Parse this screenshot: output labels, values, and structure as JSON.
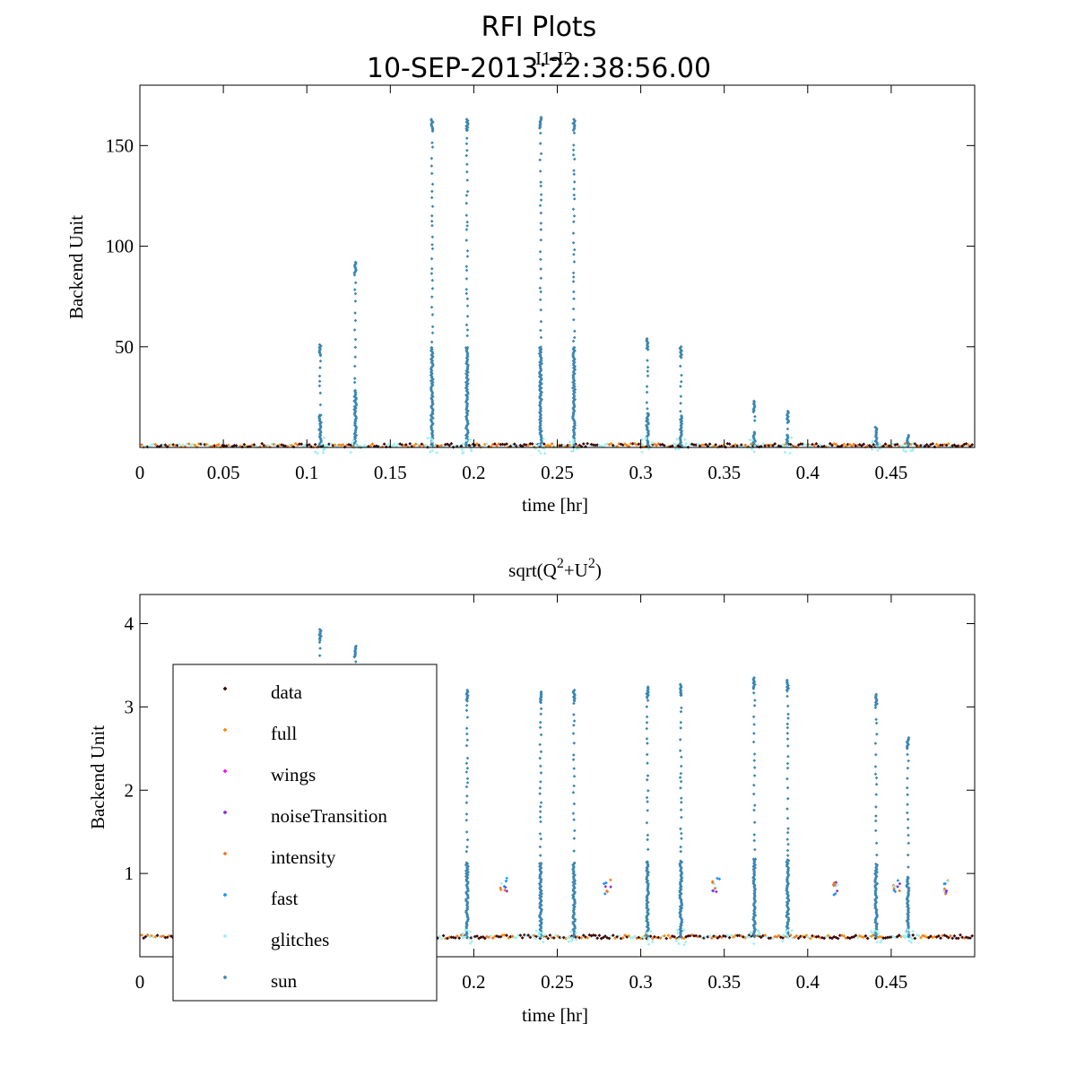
{
  "figure": {
    "title": "RFI Plots",
    "subtitle": "10-SEP-2013:22:38:56.00"
  },
  "colors": {
    "data": "#3a0a0a",
    "full": "#ff8c00",
    "wings": "#ff00ff",
    "noiseTransition": "#8a2be2",
    "intensity": "#f07820",
    "fast": "#1e90ff",
    "glitches": "#a0f0f0",
    "sun": "#3a86b0"
  },
  "legend": {
    "entries": [
      "data",
      "full",
      "wings",
      "noiseTransition",
      "intensity",
      "fast",
      "glitches",
      "sun"
    ]
  },
  "chart_data": [
    {
      "type": "scatter",
      "title": "I1-I2",
      "xlabel": "time [hr]",
      "ylabel": "Backend Unit",
      "xlim": [
        0,
        0.5
      ],
      "ylim": [
        0,
        180
      ],
      "xticks": [
        0,
        0.05,
        0.1,
        0.15,
        0.2,
        0.25,
        0.3,
        0.35,
        0.4,
        0.45
      ],
      "xtick_labels": [
        "0",
        "0.05",
        "0.1",
        "0.15",
        "0.2",
        "0.25",
        "0.3",
        "0.35",
        "0.4",
        "0.45"
      ],
      "yticks": [
        50,
        100,
        150
      ],
      "ytick_labels": [
        "50",
        "100",
        "150"
      ],
      "baseline": 1.0,
      "sun_spikes": [
        {
          "x": 0.108,
          "peak": 51
        },
        {
          "x": 0.129,
          "peak": 92
        },
        {
          "x": 0.175,
          "peak": 163
        },
        {
          "x": 0.196,
          "peak": 163
        },
        {
          "x": 0.24,
          "peak": 164
        },
        {
          "x": 0.26,
          "peak": 163
        },
        {
          "x": 0.304,
          "peak": 54
        },
        {
          "x": 0.324,
          "peak": 50
        },
        {
          "x": 0.368,
          "peak": 23
        },
        {
          "x": 0.388,
          "peak": 18
        },
        {
          "x": 0.441,
          "peak": 10
        },
        {
          "x": 0.46,
          "peak": 6
        }
      ]
    },
    {
      "type": "scatter",
      "title": "sqrt(Q^2+U^2)",
      "title_parts": [
        "sqrt(Q",
        "2",
        "+U",
        "2",
        ")"
      ],
      "xlabel": "time [hr]",
      "ylabel": "Backend Unit",
      "xlim": [
        0,
        0.5
      ],
      "ylim": [
        0,
        4.35
      ],
      "xticks": [
        0,
        0.2,
        0.25,
        0.3,
        0.35,
        0.4,
        0.45
      ],
      "xtick_labels": [
        "0",
        "0.2",
        "0.25",
        "0.3",
        "0.35",
        "0.4",
        "0.45"
      ],
      "yticks": [
        1,
        2,
        3,
        4
      ],
      "ytick_labels": [
        "1",
        "2",
        "3",
        "4"
      ],
      "baseline": 0.24,
      "sun_spikes": [
        {
          "x": 0.108,
          "peak": 3.93
        },
        {
          "x": 0.129,
          "peak": 3.73
        },
        {
          "x": 0.196,
          "peak": 3.2
        },
        {
          "x": 0.24,
          "peak": 3.18
        },
        {
          "x": 0.26,
          "peak": 3.2
        },
        {
          "x": 0.304,
          "peak": 3.24
        },
        {
          "x": 0.324,
          "peak": 3.27
        },
        {
          "x": 0.368,
          "peak": 3.35
        },
        {
          "x": 0.388,
          "peak": 3.32
        },
        {
          "x": 0.441,
          "peak": 3.15
        },
        {
          "x": 0.46,
          "peak": 2.63
        }
      ],
      "intensity_clusters": [
        {
          "x": 0.218,
          "y": 0.86
        },
        {
          "x": 0.28,
          "y": 0.84
        },
        {
          "x": 0.345,
          "y": 0.86
        },
        {
          "x": 0.417,
          "y": 0.82
        },
        {
          "x": 0.453,
          "y": 0.85
        },
        {
          "x": 0.483,
          "y": 0.83
        }
      ]
    }
  ]
}
